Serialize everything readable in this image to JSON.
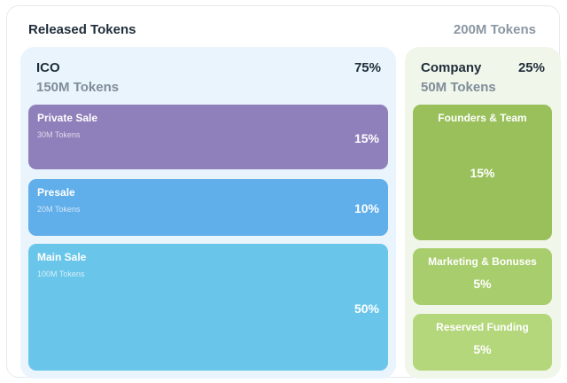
{
  "header": {
    "title": "Released Tokens",
    "total": "200M Tokens"
  },
  "chart_data": {
    "type": "treemap",
    "title": "Released Tokens",
    "total": "200M Tokens",
    "groups": [
      {
        "name": "ICO",
        "percent": "75%",
        "tokens": "150M Tokens",
        "items": [
          {
            "name": "Private Sale",
            "tokens": "30M Tokens",
            "percent": "15%",
            "value": 15,
            "color": "#8f7fba"
          },
          {
            "name": "Presale",
            "tokens": "20M Tokens",
            "percent": "10%",
            "value": 10,
            "color": "#60aeea"
          },
          {
            "name": "Main Sale",
            "tokens": "100M Tokens",
            "percent": "50%",
            "value": 50,
            "color": "#69c6ea"
          }
        ]
      },
      {
        "name": "Company",
        "percent": "25%",
        "tokens": "50M Tokens",
        "items": [
          {
            "name": "Founders & Team",
            "percent": "15%",
            "value": 15,
            "color": "#99c05a"
          },
          {
            "name": "Marketing & Bonuses",
            "percent": "5%",
            "value": 5,
            "color": "#a8cd6c"
          },
          {
            "name": "Reserved Funding",
            "percent": "5%",
            "value": 5,
            "color": "#b4d77c"
          }
        ]
      }
    ]
  }
}
